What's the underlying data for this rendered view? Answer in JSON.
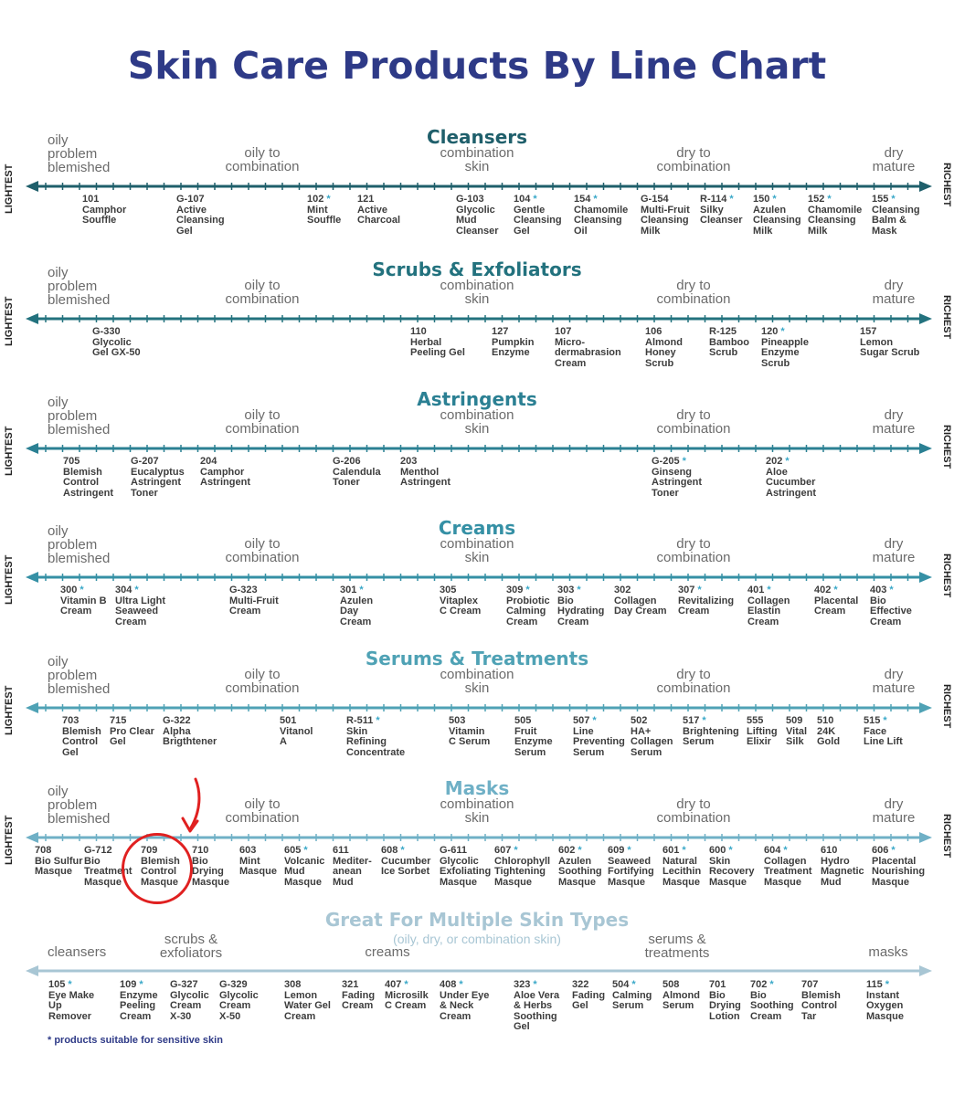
{
  "title": "Skin Care Products By Line Chart",
  "labels": {
    "lightest": "LIGHTEST",
    "richest": "RICHEST"
  },
  "category_labels": [
    "oily\nproblem\nblemished",
    "oily to\ncombination",
    "combination\nskin",
    "dry to\ncombination",
    "dry\nmature"
  ],
  "sections": [
    {
      "title": "Cleansers",
      "products": [
        {
          "code": "101",
          "name": "Camphor\nSouffle",
          "sensitive": false
        },
        {
          "code": "G-107",
          "name": "Active\nCleansing\nGel",
          "sensitive": false
        },
        {
          "code": "102",
          "name": "Mint\nSouffle",
          "sensitive": true
        },
        {
          "code": "121",
          "name": "Active\nCharcoal",
          "sensitive": false
        },
        {
          "code": "G-103",
          "name": "Glycolic\nMud\nCleanser",
          "sensitive": false
        },
        {
          "code": "104",
          "name": "Gentle\nCleansing\nGel",
          "sensitive": true
        },
        {
          "code": "154",
          "name": "Chamomile\nCleansing\nOil",
          "sensitive": true
        },
        {
          "code": "G-154",
          "name": "Multi-Fruit\nCleansing\nMilk",
          "sensitive": false
        },
        {
          "code": "R-114",
          "name": "Silky\nCleanser",
          "sensitive": true
        },
        {
          "code": "150",
          "name": "Azulen\nCleansing\nMilk",
          "sensitive": true
        },
        {
          "code": "152",
          "name": "Chamomile\nCleansing\nMilk",
          "sensitive": true
        },
        {
          "code": "155",
          "name": "Cleansing\nBalm &\nMask",
          "sensitive": true
        }
      ]
    },
    {
      "title": "Scrubs & Exfoliators",
      "products": [
        {
          "code": "G-330",
          "name": "Glycolic\nGel GX-50",
          "sensitive": false
        },
        {
          "code": "110",
          "name": "Herbal\nPeeling Gel",
          "sensitive": false
        },
        {
          "code": "127",
          "name": "Pumpkin\nEnzyme",
          "sensitive": false
        },
        {
          "code": "107",
          "name": "Micro-\ndermabrasion\nCream",
          "sensitive": false
        },
        {
          "code": "106",
          "name": "Almond\nHoney\nScrub",
          "sensitive": false
        },
        {
          "code": "R-125",
          "name": "Bamboo\nScrub",
          "sensitive": false
        },
        {
          "code": "120",
          "name": "Pineapple\nEnzyme\nScrub",
          "sensitive": true
        },
        {
          "code": "157",
          "name": "Lemon\nSugar Scrub",
          "sensitive": false
        }
      ]
    },
    {
      "title": "Astringents",
      "products": [
        {
          "code": "705",
          "name": "Blemish\nControl\nAstringent",
          "sensitive": false
        },
        {
          "code": "G-207",
          "name": "Eucalyptus\nAstringent\nToner",
          "sensitive": false
        },
        {
          "code": "204",
          "name": "Camphor\nAstringent",
          "sensitive": false
        },
        {
          "code": "G-206",
          "name": "Calendula\nToner",
          "sensitive": false
        },
        {
          "code": "203",
          "name": "Menthol\nAstringent",
          "sensitive": false
        },
        {
          "code": "G-205",
          "name": "Ginseng\nAstringent\nToner",
          "sensitive": true
        },
        {
          "code": "202",
          "name": "Aloe\nCucumber\nAstringent",
          "sensitive": true
        }
      ]
    },
    {
      "title": "Creams",
      "products": [
        {
          "code": "300",
          "name": "Vitamin B\nCream",
          "sensitive": true
        },
        {
          "code": "304",
          "name": "Ultra Light\nSeaweed\nCream",
          "sensitive": true
        },
        {
          "code": "G-323",
          "name": "Multi-Fruit\nCream",
          "sensitive": false
        },
        {
          "code": "301",
          "name": "Azulen\nDay\nCream",
          "sensitive": true
        },
        {
          "code": "305",
          "name": "Vitaplex\nC Cream",
          "sensitive": false
        },
        {
          "code": "309",
          "name": "Probiotic\nCalming\nCream",
          "sensitive": true
        },
        {
          "code": "303",
          "name": "Bio\nHydrating\nCream",
          "sensitive": true
        },
        {
          "code": "302",
          "name": "Collagen\nDay Cream",
          "sensitive": false
        },
        {
          "code": "307",
          "name": "Revitalizing\nCream",
          "sensitive": true
        },
        {
          "code": "401",
          "name": "Collagen\nElastin\nCream",
          "sensitive": true
        },
        {
          "code": "402",
          "name": "Placental\nCream",
          "sensitive": true
        },
        {
          "code": "403",
          "name": "Bio\nEffective\nCream",
          "sensitive": true
        }
      ]
    },
    {
      "title": "Serums & Treatments",
      "products": [
        {
          "code": "703",
          "name": "Blemish\nControl\nGel",
          "sensitive": false
        },
        {
          "code": "715",
          "name": "Pro Clear\nGel",
          "sensitive": false
        },
        {
          "code": "G-322",
          "name": "Alpha\nBrigthtener",
          "sensitive": false
        },
        {
          "code": "501",
          "name": "Vitanol\nA",
          "sensitive": false
        },
        {
          "code": "R-511",
          "name": "Skin\nRefining\nConcentrate",
          "sensitive": true
        },
        {
          "code": "503",
          "name": "Vitamin\nC Serum",
          "sensitive": false
        },
        {
          "code": "505",
          "name": "Fruit\nEnzyme\nSerum",
          "sensitive": false
        },
        {
          "code": "507",
          "name": "Line\nPreventing\nSerum",
          "sensitive": true
        },
        {
          "code": "502",
          "name": "HA+\nCollagen\nSerum",
          "sensitive": false
        },
        {
          "code": "517",
          "name": "Brightening\nSerum",
          "sensitive": true
        },
        {
          "code": "555",
          "name": "Lifting\nElixir",
          "sensitive": false
        },
        {
          "code": "509",
          "name": "Vital\nSilk",
          "sensitive": false
        },
        {
          "code": "510",
          "name": "24K\nGold",
          "sensitive": false
        },
        {
          "code": "515",
          "name": "Face\nLine Lift",
          "sensitive": true
        }
      ]
    },
    {
      "title": "Masks",
      "products": [
        {
          "code": "708",
          "name": "Bio Sulfur\nMasque",
          "sensitive": false
        },
        {
          "code": "G-712",
          "name": "Bio\nTreatment\nMasque",
          "sensitive": false
        },
        {
          "code": "709",
          "name": "Blemish\nControl\nMasque",
          "sensitive": false
        },
        {
          "code": "710",
          "name": "Bio\nDrying\nMasque",
          "sensitive": false
        },
        {
          "code": "603",
          "name": "Mint\nMasque",
          "sensitive": false
        },
        {
          "code": "605",
          "name": "Volcanic\nMud\nMasque",
          "sensitive": true
        },
        {
          "code": "611",
          "name": "Mediter-\nanean\nMud",
          "sensitive": false
        },
        {
          "code": "608",
          "name": "Cucumber\nIce Sorbet",
          "sensitive": true
        },
        {
          "code": "G-611",
          "name": "Glycolic\nExfoliating\nMasque",
          "sensitive": false
        },
        {
          "code": "607",
          "name": "Chlorophyll\nTightening\nMasque",
          "sensitive": true
        },
        {
          "code": "602",
          "name": "Azulen\nSoothing\nMasque",
          "sensitive": true
        },
        {
          "code": "609",
          "name": "Seaweed\nFortifying\nMasque",
          "sensitive": true
        },
        {
          "code": "601",
          "name": "Natural\nLecithin\nMasque",
          "sensitive": true
        },
        {
          "code": "600",
          "name": "Skin\nRecovery\nMasque",
          "sensitive": true
        },
        {
          "code": "604",
          "name": "Collagen\nTreatment\nMasque",
          "sensitive": true
        },
        {
          "code": "610",
          "name": "Hydro\nMagnetic\nMud",
          "sensitive": false
        },
        {
          "code": "606",
          "name": "Placental\nNourishing\nMasque",
          "sensitive": true
        }
      ]
    }
  ],
  "multi": {
    "title": "Great For Multiple Skin Types",
    "subtitle": "(oily, dry, or combination skin)",
    "categories": [
      "cleansers",
      "scrubs &\nexfoliators",
      "creams",
      "serums &\ntreatments",
      "masks"
    ],
    "products": [
      {
        "code": "105",
        "name": "Eye Make\nUp\nRemover",
        "sensitive": true
      },
      {
        "code": "109",
        "name": "Enzyme\nPeeling\nCream",
        "sensitive": true
      },
      {
        "code": "G-327",
        "name": "Glycolic\nCream\nX-30",
        "sensitive": false
      },
      {
        "code": "G-329",
        "name": "Glycolic\nCream\nX-50",
        "sensitive": false
      },
      {
        "code": "308",
        "name": "Lemon\nWater Gel\nCream",
        "sensitive": false
      },
      {
        "code": "321",
        "name": "Fading\nCream",
        "sensitive": false
      },
      {
        "code": "407",
        "name": "Microsilk\nC Cream",
        "sensitive": true
      },
      {
        "code": "408",
        "name": "Under Eye\n& Neck\nCream",
        "sensitive": true
      },
      {
        "code": "323",
        "name": "Aloe Vera\n& Herbs\nSoothing\nGel",
        "sensitive": true
      },
      {
        "code": "322",
        "name": "Fading\nGel",
        "sensitive": false
      },
      {
        "code": "504",
        "name": "Calming\nSerum",
        "sensitive": true
      },
      {
        "code": "508",
        "name": "Almond\nSerum",
        "sensitive": false
      },
      {
        "code": "701",
        "name": "Bio\nDrying\nLotion",
        "sensitive": false
      },
      {
        "code": "702",
        "name": "Bio\nSoothing\nCream",
        "sensitive": true
      },
      {
        "code": "707",
        "name": "Blemish\nControl\nTar",
        "sensitive": false
      },
      {
        "code": "115",
        "name": "Instant\nOxygen\nMasque",
        "sensitive": true
      }
    ]
  },
  "footnote": "* products suitable for sensitive skin",
  "colors": {
    "title": "#2e3a87",
    "sections": [
      "#1f5f6b",
      "#23727e",
      "#2b8093",
      "#3590a5",
      "#4fa2b5",
      "#6fb0c6"
    ],
    "multi": "#a8c6d4",
    "star": "#3aa8c8",
    "highlight": "#e02020"
  }
}
